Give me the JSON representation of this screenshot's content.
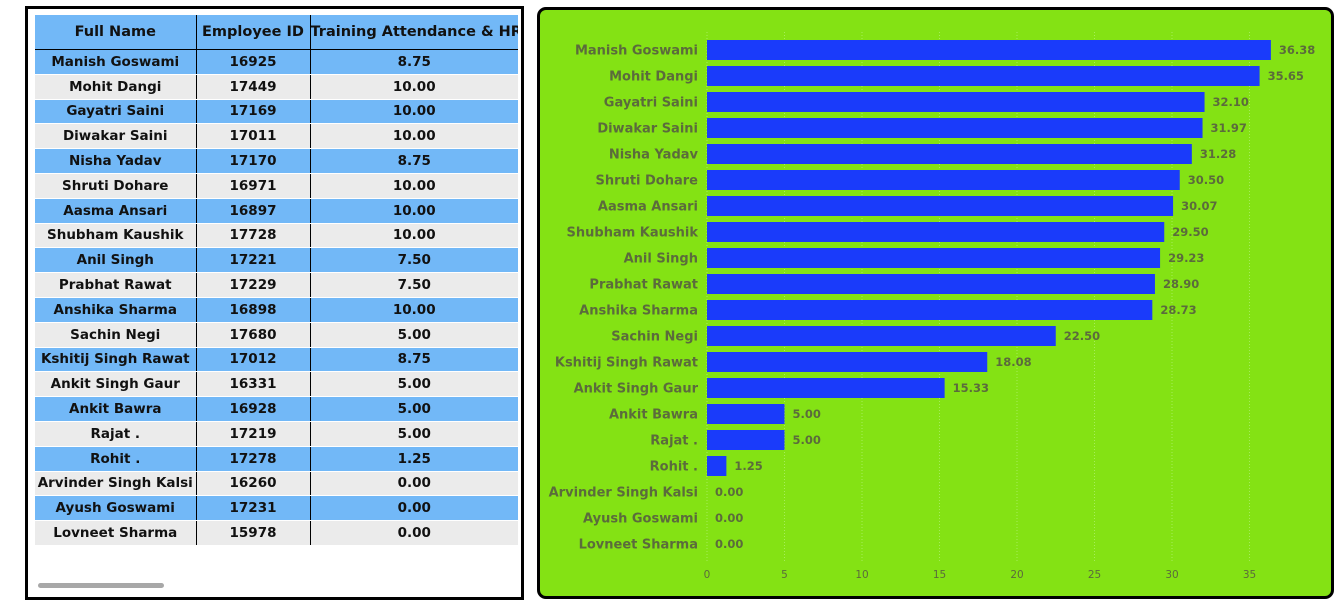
{
  "table": {
    "headers": [
      "Full Name",
      "Employee ID",
      "Training Attendance & HR"
    ],
    "rows": [
      [
        "Manish Goswami",
        "16925",
        "8.75"
      ],
      [
        "Mohit Dangi",
        "17449",
        "10.00"
      ],
      [
        "Gayatri Saini",
        "17169",
        "10.00"
      ],
      [
        "Diwakar Saini",
        "17011",
        "10.00"
      ],
      [
        "Nisha Yadav",
        "17170",
        "8.75"
      ],
      [
        "Shruti Dohare",
        "16971",
        "10.00"
      ],
      [
        "Aasma Ansari",
        "16897",
        "10.00"
      ],
      [
        "Shubham Kaushik",
        "17728",
        "10.00"
      ],
      [
        "Anil Singh",
        "17221",
        "7.50"
      ],
      [
        "Prabhat Rawat",
        "17229",
        "7.50"
      ],
      [
        "Anshika Sharma",
        "16898",
        "10.00"
      ],
      [
        "Sachin Negi",
        "17680",
        "5.00"
      ],
      [
        "Kshitij Singh Rawat",
        "17012",
        "8.75"
      ],
      [
        "Ankit Singh Gaur",
        "16331",
        "5.00"
      ],
      [
        "Ankit Bawra",
        "16928",
        "5.00"
      ],
      [
        "Rajat .",
        "17219",
        "5.00"
      ],
      [
        "Rohit .",
        "17278",
        "1.25"
      ],
      [
        "Arvinder Singh Kalsi",
        "16260",
        "0.00"
      ],
      [
        "Ayush Goswami",
        "17231",
        "0.00"
      ],
      [
        "Lovneet Sharma",
        "15978",
        "0.00"
      ]
    ]
  },
  "chart_data": {
    "type": "bar",
    "orientation": "horizontal",
    "categories": [
      "Manish Goswami",
      "Mohit Dangi",
      "Gayatri Saini",
      "Diwakar Saini",
      "Nisha Yadav",
      "Shruti Dohare",
      "Aasma Ansari",
      "Shubham Kaushik",
      "Anil Singh",
      "Prabhat Rawat",
      "Anshika Sharma",
      "Sachin Negi",
      "Kshitij Singh Rawat",
      "Ankit Singh Gaur",
      "Ankit Bawra",
      "Rajat .",
      "Rohit .",
      "Arvinder Singh Kalsi",
      "Ayush Goswami",
      "Lovneet Sharma"
    ],
    "values": [
      36.38,
      35.65,
      32.1,
      31.97,
      31.28,
      30.5,
      30.07,
      29.5,
      29.23,
      28.9,
      28.73,
      22.5,
      18.08,
      15.33,
      5.0,
      5.0,
      1.25,
      0.0,
      0.0,
      0.0
    ],
    "value_labels": [
      "36.38",
      "35.65",
      "32.10",
      "31.97",
      "31.28",
      "30.50",
      "30.07",
      "29.50",
      "29.23",
      "28.90",
      "28.73",
      "22.50",
      "18.08",
      "15.33",
      "5.00",
      "5.00",
      "1.25",
      "0.00",
      "0.00",
      "0.00"
    ],
    "xticks": [
      0,
      5,
      10,
      15,
      20,
      25,
      30,
      35
    ],
    "xlim": [
      0,
      37
    ],
    "grid": true,
    "colors": {
      "bar": "#1a3bfa",
      "background": "#84e214",
      "label": "#5b6b3c"
    }
  }
}
